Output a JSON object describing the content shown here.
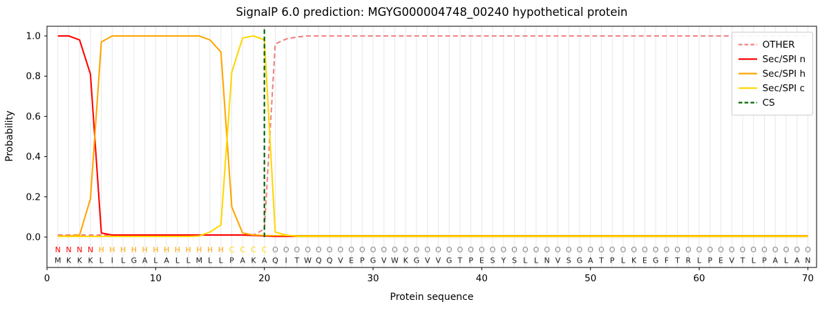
{
  "chart_data": {
    "type": "line",
    "title": "SignalP 6.0 prediction: MGYG000004748_00240 hypothetical protein",
    "xlabel": "Protein sequence",
    "ylabel": "Probability",
    "xlim": [
      0,
      70.8
    ],
    "ylim": [
      -0.15,
      1.05
    ],
    "xticks": [
      0,
      10,
      20,
      30,
      40,
      50,
      60,
      70
    ],
    "ytick_values": [
      0.0,
      0.2,
      0.4,
      0.6,
      0.8,
      1.0
    ],
    "ytick_labels": [
      "0.0",
      "0.2",
      "0.4",
      "0.6",
      "0.8",
      "1.0"
    ],
    "grid": {
      "vertical_line_every_residue": true,
      "color": "#e7e7e7",
      "horizontal": false
    },
    "legend_position": "upper right",
    "x_start": 1,
    "sequence": "MKKKLILGALALLMLLPAKAQITWQQVEPGVWKGVVGTPESYSLLNVSGATPLKEGFTRLPEVTLPALAN",
    "region_labels": "NNNNHHHHHHHHHHHHCCCCOOOOOOOOOOOOOOOOOOOOOOOOOOOOOOOOOOOOOOOOOOOOOOOOOO",
    "region_colors": {
      "N": "#ff0000",
      "H": "#ffa500",
      "C": "#ffd700",
      "O": "#808080"
    },
    "sequence_color": "#1a1a1a",
    "cleavage_site_x": 20,
    "series": [
      {
        "name": "OTHER",
        "color": "#f08080",
        "style": "dashed",
        "values": [
          0.01,
          0.01,
          0.01,
          0.01,
          0.01,
          0.01,
          0.01,
          0.01,
          0.01,
          0.01,
          0.01,
          0.01,
          0.01,
          0.01,
          0.01,
          0.01,
          0.01,
          0.01,
          0.01,
          0.04,
          0.96,
          0.985,
          0.995,
          1.0,
          1.0,
          1.0,
          1.0,
          1.0,
          1.0,
          1.0,
          1.0,
          1.0,
          1.0,
          1.0,
          1.0,
          1.0,
          1.0,
          1.0,
          1.0,
          1.0,
          1.0,
          1.0,
          1.0,
          1.0,
          1.0,
          1.0,
          1.0,
          1.0,
          1.0,
          1.0,
          1.0,
          1.0,
          1.0,
          1.0,
          1.0,
          1.0,
          1.0,
          1.0,
          1.0,
          1.0,
          1.0,
          1.0,
          1.0,
          1.0,
          1.0,
          1.0,
          1.0,
          1.0,
          1.0,
          1.0
        ]
      },
      {
        "name": "Sec/SPI n",
        "color": "#ff0000",
        "style": "solid",
        "values": [
          1.0,
          1.0,
          0.98,
          0.81,
          0.02,
          0.01,
          0.01,
          0.01,
          0.01,
          0.01,
          0.01,
          0.01,
          0.01,
          0.01,
          0.01,
          0.01,
          0.01,
          0.01,
          0.008,
          0.005,
          0.003,
          0.003,
          0.003,
          0.003,
          0.003,
          0.003,
          0.003,
          0.003,
          0.003,
          0.003,
          0.003,
          0.003,
          0.003,
          0.003,
          0.003,
          0.003,
          0.003,
          0.003,
          0.003,
          0.003,
          0.003,
          0.003,
          0.003,
          0.003,
          0.003,
          0.003,
          0.003,
          0.003,
          0.003,
          0.003,
          0.003,
          0.003,
          0.003,
          0.003,
          0.003,
          0.003,
          0.003,
          0.003,
          0.003,
          0.003,
          0.003,
          0.003,
          0.003,
          0.003,
          0.003,
          0.003,
          0.003,
          0.003,
          0.003,
          0.003
        ]
      },
      {
        "name": "Sec/SPI h",
        "color": "#ffa500",
        "style": "solid",
        "values": [
          0.005,
          0.005,
          0.01,
          0.19,
          0.97,
          1.0,
          1.0,
          1.0,
          1.0,
          1.0,
          1.0,
          1.0,
          1.0,
          1.0,
          0.98,
          0.92,
          0.15,
          0.02,
          0.01,
          0.008,
          0.007,
          0.007,
          0.007,
          0.007,
          0.007,
          0.007,
          0.007,
          0.007,
          0.007,
          0.007,
          0.007,
          0.007,
          0.007,
          0.007,
          0.007,
          0.007,
          0.007,
          0.007,
          0.007,
          0.007,
          0.007,
          0.007,
          0.007,
          0.007,
          0.007,
          0.007,
          0.007,
          0.007,
          0.007,
          0.007,
          0.007,
          0.007,
          0.007,
          0.007,
          0.007,
          0.007,
          0.007,
          0.007,
          0.007,
          0.007,
          0.007,
          0.007,
          0.007,
          0.007,
          0.007,
          0.007,
          0.007,
          0.007,
          0.007,
          0.007
        ]
      },
      {
        "name": "Sec/SPI c",
        "color": "#ffd700",
        "style": "solid",
        "values": [
          0.003,
          0.003,
          0.003,
          0.003,
          0.003,
          0.003,
          0.003,
          0.003,
          0.003,
          0.003,
          0.003,
          0.003,
          0.003,
          0.005,
          0.025,
          0.06,
          0.82,
          0.99,
          1.0,
          0.98,
          0.025,
          0.01,
          0.003,
          0.003,
          0.003,
          0.003,
          0.003,
          0.003,
          0.003,
          0.003,
          0.003,
          0.003,
          0.003,
          0.003,
          0.003,
          0.003,
          0.003,
          0.003,
          0.003,
          0.003,
          0.003,
          0.003,
          0.003,
          0.003,
          0.003,
          0.003,
          0.003,
          0.003,
          0.003,
          0.003,
          0.003,
          0.003,
          0.003,
          0.003,
          0.003,
          0.003,
          0.003,
          0.003,
          0.003,
          0.003,
          0.003,
          0.003,
          0.003,
          0.003,
          0.003,
          0.003,
          0.003,
          0.003,
          0.003,
          0.003
        ]
      },
      {
        "name": "CS",
        "color": "#006400",
        "style": "dashed",
        "type": "vline",
        "x": 20,
        "y_span": [
          0,
          1.04
        ]
      }
    ]
  }
}
